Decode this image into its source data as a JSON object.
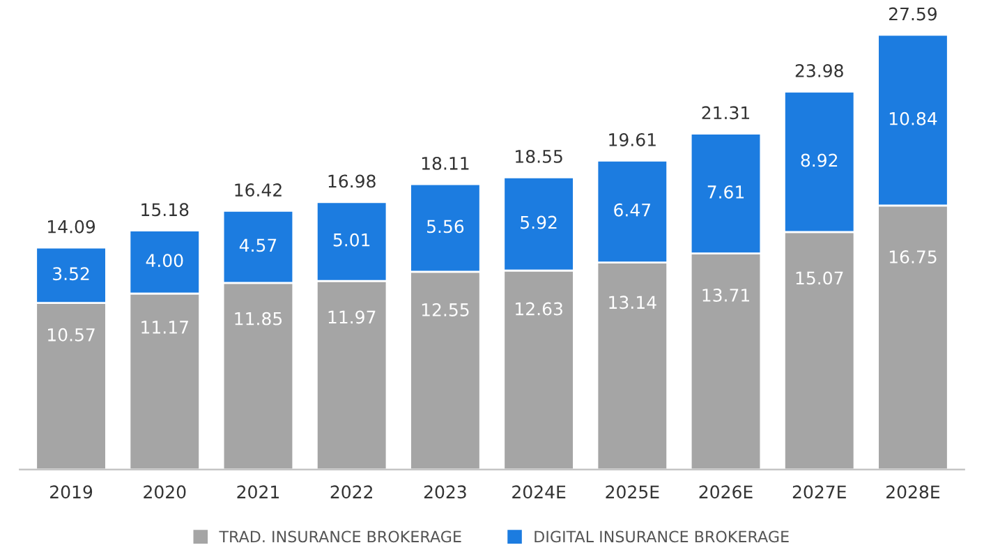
{
  "chart_data": {
    "type": "bar",
    "stacked": true,
    "categories": [
      "2019",
      "2020",
      "2021",
      "2022",
      "2023",
      "2024E",
      "2025E",
      "2026E",
      "2027E",
      "2028E"
    ],
    "series": [
      {
        "name": "TRAD. INSURANCE BROKERAGE",
        "color": "#a5a5a5",
        "values": [
          10.57,
          11.17,
          11.85,
          11.97,
          12.55,
          12.63,
          13.14,
          13.71,
          15.07,
          16.75
        ],
        "value_labels": [
          "10.57",
          "11.17",
          "11.85",
          "11.97",
          "12.55",
          "12.63",
          "13.14",
          "13.71",
          "15.07",
          "16.75"
        ]
      },
      {
        "name": "DIGITAL INSURANCE BROKERAGE",
        "color": "#1c7ce0",
        "values": [
          3.52,
          4.0,
          4.57,
          5.01,
          5.56,
          5.92,
          6.47,
          7.61,
          8.92,
          10.84
        ],
        "value_labels": [
          "3.52",
          "4.00",
          "4.57",
          "5.01",
          "5.56",
          "5.92",
          "6.47",
          "7.61",
          "8.92",
          "10.84"
        ]
      }
    ],
    "totals": [
      "14.09",
      "15.18",
      "16.42",
      "16.98",
      "18.11",
      "18.55",
      "19.61",
      "21.31",
      "23.98",
      "27.59"
    ],
    "legend": "bottom",
    "grid": false
  }
}
